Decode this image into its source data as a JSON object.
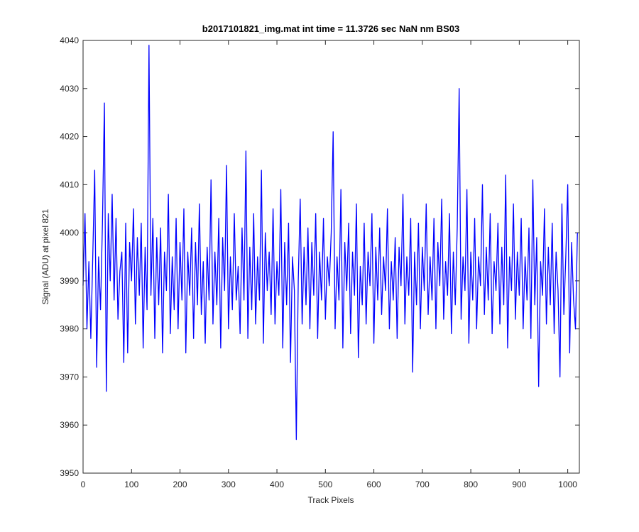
{
  "chart_data": {
    "type": "line",
    "title": "b2017101821_img.mat int time = 11.3726 sec  NaN nm BS03",
    "x_label": "Track Pixels",
    "y_label": "Signal (ADU) at pixel 821",
    "xlim": [
      0,
      1024
    ],
    "ylim": [
      3950,
      4040
    ],
    "xticks": [
      0,
      100,
      200,
      300,
      400,
      500,
      600,
      700,
      800,
      900,
      1000
    ],
    "yticks": [
      3950,
      3960,
      3970,
      3980,
      3990,
      4000,
      4010,
      4020,
      4030,
      4040
    ],
    "grid": false,
    "series": [
      {
        "color": "#0000ff",
        "x": [
          0,
          4,
          8,
          12,
          16,
          20,
          24,
          28,
          32,
          36,
          40,
          44,
          48,
          52,
          56,
          60,
          64,
          68,
          72,
          76,
          80,
          84,
          88,
          92,
          96,
          100,
          104,
          108,
          112,
          116,
          120,
          124,
          128,
          132,
          136,
          140,
          144,
          148,
          152,
          156,
          160,
          164,
          168,
          172,
          176,
          180,
          184,
          188,
          192,
          196,
          200,
          204,
          208,
          212,
          216,
          220,
          224,
          228,
          232,
          236,
          240,
          244,
          248,
          252,
          256,
          260,
          264,
          268,
          272,
          276,
          280,
          284,
          288,
          292,
          296,
          300,
          304,
          308,
          312,
          316,
          320,
          324,
          328,
          332,
          336,
          340,
          344,
          348,
          352,
          356,
          360,
          364,
          368,
          372,
          376,
          380,
          384,
          388,
          392,
          396,
          400,
          404,
          408,
          412,
          416,
          420,
          424,
          428,
          432,
          436,
          440,
          444,
          448,
          452,
          456,
          460,
          464,
          468,
          472,
          476,
          480,
          484,
          488,
          492,
          496,
          500,
          504,
          508,
          512,
          516,
          520,
          524,
          528,
          532,
          536,
          540,
          544,
          548,
          552,
          556,
          560,
          564,
          568,
          572,
          576,
          580,
          584,
          588,
          592,
          596,
          600,
          604,
          608,
          612,
          616,
          620,
          624,
          628,
          632,
          636,
          640,
          644,
          648,
          652,
          656,
          660,
          664,
          668,
          672,
          676,
          680,
          684,
          688,
          692,
          696,
          700,
          704,
          708,
          712,
          716,
          720,
          724,
          728,
          732,
          736,
          740,
          744,
          748,
          752,
          756,
          760,
          764,
          768,
          772,
          776,
          780,
          784,
          788,
          792,
          796,
          800,
          804,
          808,
          812,
          816,
          820,
          824,
          828,
          832,
          836,
          840,
          844,
          848,
          852,
          856,
          860,
          864,
          868,
          872,
          876,
          880,
          884,
          888,
          892,
          896,
          900,
          904,
          908,
          912,
          916,
          920,
          924,
          928,
          932,
          936,
          940,
          944,
          948,
          952,
          956,
          960,
          964,
          968,
          972,
          976,
          980,
          984,
          988,
          992,
          996,
          1000,
          1004,
          1008,
          1012,
          1016,
          1020
        ],
        "values": [
          3989,
          4004,
          3980,
          3994,
          3978,
          3995,
          4013,
          3972,
          3995,
          3984,
          4002,
          4027,
          3967,
          4004,
          3990,
          4008,
          3986,
          4003,
          3982,
          3992,
          3996,
          3973,
          4002,
          3975,
          3998,
          3990,
          4005,
          3981,
          3999,
          3987,
          4002,
          3976,
          3997,
          3984,
          4039,
          3987,
          4003,
          3978,
          3999,
          3985,
          4001,
          3975,
          3996,
          3988,
          4008,
          3979,
          3995,
          3984,
          4003,
          3980,
          3998,
          3986,
          4005,
          3975,
          3996,
          3987,
          4001,
          3978,
          3998,
          3985,
          4006,
          3983,
          3994,
          3977,
          3997,
          3986,
          4011,
          3981,
          3996,
          3985,
          4003,
          3976,
          3999,
          3988,
          4014,
          3980,
          3995,
          3984,
          4004,
          3986,
          3993,
          3979,
          4001,
          3986,
          4017,
          3978,
          3997,
          3984,
          4004,
          3981,
          3995,
          3986,
          4013,
          3977,
          4000,
          3988,
          3996,
          3983,
          4005,
          3981,
          3994,
          3987,
          4009,
          3976,
          3998,
          3985,
          4002,
          3973,
          3995,
          3988,
          3957,
          3990,
          4007,
          3981,
          3997,
          3985,
          4001,
          3980,
          3998,
          3987,
          4004,
          3978,
          3996,
          3986,
          4003,
          3982,
          3995,
          3989,
          4000,
          4021,
          3980,
          3995,
          3986,
          4009,
          3976,
          3998,
          3988,
          4002,
          3979,
          3996,
          3987,
          4006,
          3974,
          3993,
          3985,
          4002,
          3981,
          3996,
          3989,
          4004,
          3977,
          3997,
          3986,
          4001,
          3983,
          3995,
          3988,
          4005,
          3980,
          3994,
          3986,
          3999,
          3978,
          3997,
          3989,
          4008,
          3981,
          3995,
          3987,
          4003,
          3971,
          3996,
          3985,
          4002,
          3980,
          3997,
          3988,
          4006,
          3983,
          3995,
          3986,
          4003,
          3980,
          3998,
          3989,
          4007,
          3982,
          3994,
          3987,
          4004,
          3979,
          3996,
          3985,
          4001,
          4030,
          3982,
          3995,
          3988,
          4009,
          3977,
          3996,
          3986,
          4003,
          3980,
          3995,
          3989,
          4010,
          3983,
          3997,
          3986,
          4004,
          3979,
          3994,
          3988,
          4002,
          3981,
          3997,
          3985,
          4012,
          3976,
          3995,
          3988,
          4006,
          3982,
          3996,
          3987,
          4003,
          3980,
          3995,
          3986,
          4001,
          3978,
          4011,
          3985,
          3999,
          3968,
          3994,
          3987,
          4005,
          3981,
          3997,
          3985,
          4002,
          3979,
          3996,
          3988,
          3970,
          4006,
          3983,
          3995,
          4010,
          3975,
          3998,
          3986,
          3980,
          4000
        ]
      }
    ]
  }
}
